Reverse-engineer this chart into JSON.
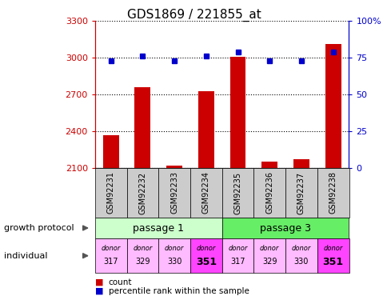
{
  "title": "GDS1869 / 221855_at",
  "samples": [
    "GSM92231",
    "GSM92232",
    "GSM92233",
    "GSM92234",
    "GSM92235",
    "GSM92236",
    "GSM92237",
    "GSM92238"
  ],
  "counts": [
    2370,
    2760,
    2120,
    2730,
    3010,
    2150,
    2175,
    3110
  ],
  "percentiles": [
    73,
    76,
    73,
    76,
    79,
    73,
    73,
    79
  ],
  "ylim_left": [
    2100,
    3300
  ],
  "ylim_right": [
    0,
    100
  ],
  "yticks_left": [
    2100,
    2400,
    2700,
    3000,
    3300
  ],
  "yticks_right": [
    0,
    25,
    50,
    75,
    100
  ],
  "bar_color": "#cc0000",
  "dot_color": "#0000cc",
  "passage1_color": "#ccffcc",
  "passage3_color": "#66ee66",
  "passage1_label": "passage 1",
  "passage3_label": "passage 3",
  "donor_colors": [
    "#ffbbff",
    "#ffbbff",
    "#ffbbff",
    "#ff44ff",
    "#ffbbff",
    "#ffbbff",
    "#ffbbff",
    "#ff44ff"
  ],
  "donors": [
    "317",
    "329",
    "330",
    "351",
    "317",
    "329",
    "330",
    "351"
  ],
  "sample_bg_color": "#cccccc",
  "axis_left_color": "#cc0000",
  "axis_right_color": "#0000cc",
  "figsize": [
    4.85,
    3.75
  ],
  "dpi": 100
}
